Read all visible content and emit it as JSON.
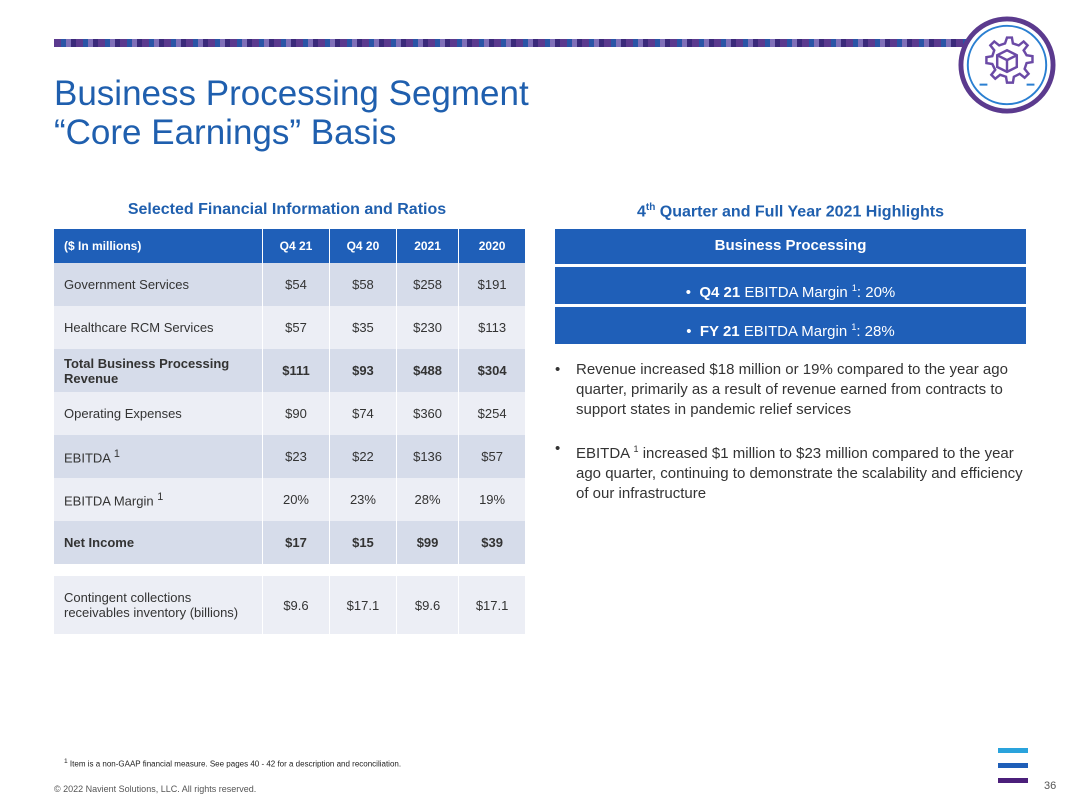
{
  "header": {
    "title_line1": "Business Processing Segment",
    "title_line2": "“Core Earnings” Basis",
    "logo_icon": "gear-cube-icon",
    "colors": {
      "brand_blue": "#1f5fae",
      "table_header": "#1f5fb8",
      "purple": "#5b3a8e"
    }
  },
  "table": {
    "heading": "Selected Financial Information and Ratios",
    "columns": [
      "($ In millions)",
      "Q4 21",
      "Q4 20",
      "2021",
      "2020"
    ],
    "rows": [
      {
        "label": "Government Services",
        "values": [
          "$54",
          "$58",
          "$258",
          "$191"
        ]
      },
      {
        "label": "Healthcare RCM Services",
        "values": [
          "$57",
          "$35",
          "$230",
          "$113"
        ]
      },
      {
        "label": "Total Business Processing Revenue",
        "values": [
          "$111",
          "$93",
          "$488",
          "$304"
        ]
      },
      {
        "label": "Operating Expenses",
        "values": [
          "$90",
          "$74",
          "$360",
          "$254"
        ]
      },
      {
        "label": "EBITDA",
        "sup": "1",
        "values": [
          "$23",
          "$22",
          "$136",
          "$57"
        ]
      },
      {
        "label": "EBITDA Margin",
        "sup": "1",
        "values": [
          "20%",
          "23%",
          "28%",
          "19%"
        ]
      },
      {
        "label": "Net Income",
        "values": [
          "$17",
          "$15",
          "$99",
          "$39"
        ]
      }
    ],
    "extra_row": {
      "label": "Contingent collections receivables inventory (billions)",
      "values": [
        "$9.6",
        "$17.1",
        "$9.6",
        "$17.1"
      ]
    }
  },
  "highlights": {
    "heading_pre": "4",
    "heading_sup": "th",
    "heading_post": " Quarter and Full Year 2021 Highlights",
    "box_title": "Business Processing",
    "box1": {
      "bold": "Q4 21",
      "text": " EBITDA Margin ",
      "sup": "1",
      "tail": ": 20%"
    },
    "box2": {
      "bold": "FY 21",
      "text": " EBITDA Margin ",
      "sup": "1",
      "tail": ": 28%"
    },
    "bullet1": "Revenue increased $18 million or 19% compared to the year ago quarter, primarily as a result of revenue earned from contracts to support states in pandemic relief services",
    "bullet2_pre": "EBITDA ",
    "bullet2_sup": "1",
    "bullet2_post": " increased $1 million to $23 million compared to the year ago quarter, continuing to demonstrate the scalability and efficiency of our infrastructure"
  },
  "footer": {
    "footnote_sup": "1",
    "footnote": " Item is a non-GAAP financial measure.  See pages 40 - 42  for a description and reconciliation.",
    "copyright": "© 2022 Navient Solutions, LLC. All rights reserved.",
    "page_number": "36"
  }
}
